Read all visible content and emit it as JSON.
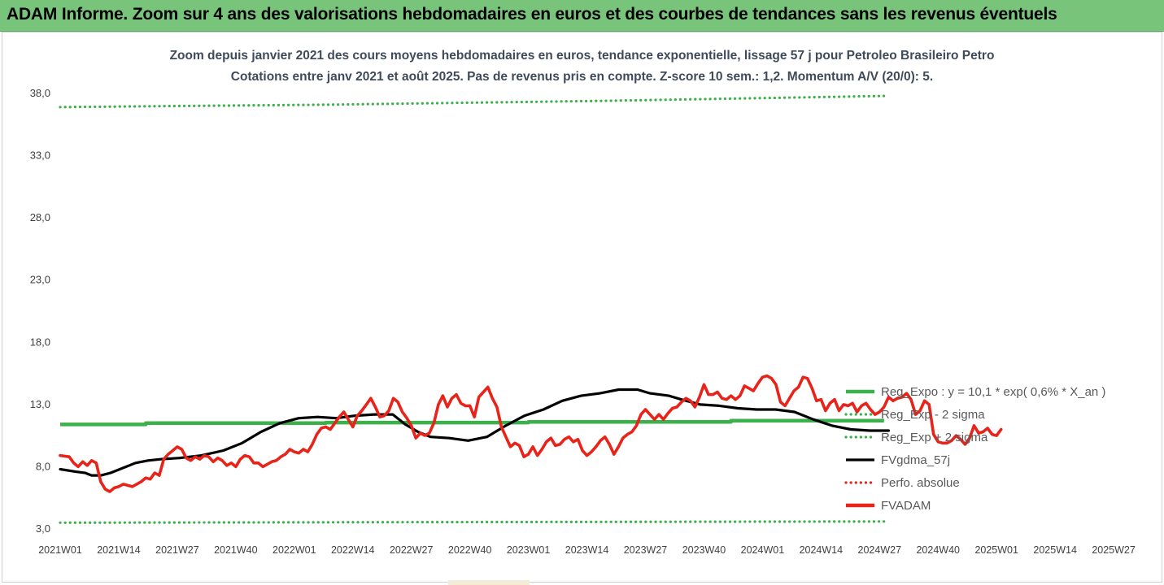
{
  "header": {
    "title": "ADAM Informe. Zoom sur 4 ans des valorisations hebdomadaires en euros et des courbes de tendances sans les revenus éventuels",
    "background": "#77c47a"
  },
  "chart_data": {
    "type": "line",
    "title": "Zoom depuis janvier 2021 des cours moyens hebdomadaires en euros, tendance exponentielle, lissage 57 j pour Petroleo Brasileiro Petro",
    "subtitle": "Cotations entre janv 2021 et août 2025.  Pas de revenus pris en compte. Z-score 10 sem.: 1,2. Momentum A/V (20/0): 5.",
    "ylim": [
      3,
      38
    ],
    "yticks": [
      "3,0",
      "8,0",
      "13,0",
      "18,0",
      "23,0",
      "28,0",
      "33,0",
      "38,0"
    ],
    "xticks": [
      "2021W01",
      "2021W14",
      "2021W27",
      "2021W40",
      "2022W01",
      "2022W14",
      "2022W27",
      "2022W40",
      "2023W01",
      "2023W14",
      "2023W27",
      "2023W40",
      "2024W01",
      "2024W14",
      "2024W27",
      "2024W40",
      "2025W01",
      "2025W14",
      "2025W27"
    ],
    "weeks": 184,
    "gridlines": false,
    "legend_position": "right",
    "series": [
      {
        "name": "Reg_Expo : y = 10,1 * exp( 0,6% *  X_an )",
        "color": "#3cb04a",
        "style": "solid",
        "points": [
          [
            0,
            11.4
          ],
          [
            19,
            11.4
          ],
          [
            19,
            11.5
          ],
          [
            59,
            11.5
          ],
          [
            59,
            11.55
          ],
          [
            104,
            11.55
          ],
          [
            104,
            11.6
          ],
          [
            149,
            11.6
          ],
          [
            149,
            11.7
          ],
          [
            183,
            11.7
          ]
        ]
      },
      {
        "name": "Reg_Exp - 2 sigma",
        "color": "#3cb04a",
        "style": "dotted",
        "points": [
          [
            0,
            3.5
          ],
          [
            183,
            3.6
          ]
        ]
      },
      {
        "name": "Reg_Exp + 2 sigma",
        "color": "#3cb04a",
        "style": "dotted",
        "points": [
          [
            0,
            36.9
          ],
          [
            60,
            37.1
          ],
          [
            120,
            37.4
          ],
          [
            183,
            37.8
          ]
        ]
      },
      {
        "name": "FVgdma_57j",
        "color": "#000000",
        "style": "solid",
        "points": [
          [
            0,
            7.8
          ],
          [
            5,
            7.6
          ],
          [
            8,
            7.5
          ],
          [
            10,
            7.3
          ],
          [
            13,
            7.3
          ],
          [
            16,
            7.5
          ],
          [
            19,
            7.8
          ],
          [
            24,
            8.3
          ],
          [
            28,
            8.5
          ],
          [
            32,
            8.6
          ],
          [
            38,
            8.7
          ],
          [
            45,
            8.9
          ],
          [
            52,
            9.3
          ],
          [
            58,
            9.9
          ],
          [
            64,
            10.8
          ],
          [
            70,
            11.5
          ],
          [
            76,
            11.9
          ],
          [
            82,
            12.0
          ],
          [
            88,
            11.9
          ],
          [
            94,
            12.1
          ],
          [
            100,
            12.2
          ],
          [
            106,
            12.2
          ],
          [
            110,
            11.4
          ],
          [
            114,
            10.8
          ],
          [
            118,
            10.4
          ],
          [
            124,
            10.3
          ],
          [
            130,
            10.1
          ],
          [
            136,
            10.4
          ],
          [
            142,
            11.3
          ],
          [
            148,
            12.1
          ],
          [
            154,
            12.6
          ],
          [
            160,
            13.3
          ],
          [
            166,
            13.7
          ],
          [
            172,
            13.9
          ],
          [
            178,
            14.2
          ],
          [
            184,
            14.2
          ],
          [
            188,
            13.9
          ],
          [
            194,
            13.7
          ],
          [
            198,
            13.4
          ],
          [
            204,
            13.0
          ],
          [
            210,
            12.9
          ],
          [
            216,
            12.7
          ],
          [
            222,
            12.6
          ],
          [
            228,
            12.6
          ],
          [
            234,
            12.4
          ],
          [
            240,
            11.8
          ],
          [
            246,
            11.3
          ],
          [
            252,
            11.0
          ],
          [
            258,
            10.9
          ],
          [
            264,
            10.9
          ]
        ]
      },
      {
        "name": "Perfo. absolue",
        "color": "#e8231a",
        "style": "dotted",
        "points": []
      },
      {
        "name": "FVADAM",
        "color": "#e8231a",
        "style": "solid",
        "points": [
          [
            0,
            8.9
          ],
          [
            2,
            8.8
          ],
          [
            3,
            8.3
          ],
          [
            4,
            8.0
          ],
          [
            5,
            8.4
          ],
          [
            6,
            8.1
          ],
          [
            7,
            8.5
          ],
          [
            8,
            8.3
          ],
          [
            9,
            6.8
          ],
          [
            10,
            6.2
          ],
          [
            11,
            6.0
          ],
          [
            12,
            6.3
          ],
          [
            13,
            6.4
          ],
          [
            14,
            6.6
          ],
          [
            15,
            6.5
          ],
          [
            16,
            6.4
          ],
          [
            17,
            6.6
          ],
          [
            18,
            6.8
          ],
          [
            19,
            7.1
          ],
          [
            20,
            7.0
          ],
          [
            21,
            7.5
          ],
          [
            22,
            7.3
          ],
          [
            23,
            8.6
          ],
          [
            24,
            9.0
          ],
          [
            25,
            9.3
          ],
          [
            26,
            9.6
          ],
          [
            27,
            9.4
          ],
          [
            28,
            8.7
          ],
          [
            29,
            8.5
          ],
          [
            30,
            8.8
          ],
          [
            31,
            8.6
          ],
          [
            32,
            8.9
          ],
          [
            33,
            8.8
          ],
          [
            34,
            8.4
          ],
          [
            35,
            8.7
          ],
          [
            36,
            8.5
          ],
          [
            37,
            8.1
          ],
          [
            38,
            8.3
          ],
          [
            39,
            8.0
          ],
          [
            40,
            8.6
          ],
          [
            41,
            8.9
          ],
          [
            42,
            8.8
          ],
          [
            43,
            8.3
          ],
          [
            44,
            8.3
          ],
          [
            45,
            8.0
          ],
          [
            46,
            8.2
          ],
          [
            47,
            8.4
          ],
          [
            48,
            8.5
          ],
          [
            49,
            8.8
          ],
          [
            50,
            9.0
          ],
          [
            51,
            9.4
          ],
          [
            52,
            9.2
          ],
          [
            53,
            9.1
          ],
          [
            54,
            9.4
          ],
          [
            55,
            9.2
          ],
          [
            56,
            9.8
          ],
          [
            57,
            10.6
          ],
          [
            58,
            11.1
          ],
          [
            59,
            11.2
          ],
          [
            60,
            11.0
          ],
          [
            61,
            11.5
          ],
          [
            62,
            12.0
          ],
          [
            63,
            12.4
          ],
          [
            64,
            11.8
          ],
          [
            65,
            11.2
          ],
          [
            66,
            12.1
          ],
          [
            67,
            12.5
          ],
          [
            68,
            13.0
          ],
          [
            69,
            13.5
          ],
          [
            70,
            12.8
          ],
          [
            71,
            12.0
          ],
          [
            72,
            12.1
          ],
          [
            73,
            12.5
          ],
          [
            74,
            13.5
          ],
          [
            75,
            13.2
          ],
          [
            76,
            12.4
          ],
          [
            77,
            11.9
          ],
          [
            78,
            11.3
          ],
          [
            79,
            10.3
          ],
          [
            80,
            10.7
          ],
          [
            81,
            10.5
          ],
          [
            82,
            10.7
          ],
          [
            83,
            11.5
          ],
          [
            84,
            13.0
          ],
          [
            85,
            13.7
          ],
          [
            86,
            12.8
          ],
          [
            87,
            13.5
          ],
          [
            88,
            13.8
          ],
          [
            89,
            13.1
          ],
          [
            90,
            12.9
          ],
          [
            91,
            12.9
          ],
          [
            92,
            12.0
          ],
          [
            93,
            13.6
          ],
          [
            94,
            14.0
          ],
          [
            95,
            14.4
          ],
          [
            96,
            13.5
          ],
          [
            97,
            12.8
          ],
          [
            98,
            11.2
          ],
          [
            99,
            10.4
          ],
          [
            100,
            9.6
          ],
          [
            101,
            9.9
          ],
          [
            102,
            9.7
          ],
          [
            103,
            8.8
          ],
          [
            104,
            9.0
          ],
          [
            105,
            9.6
          ],
          [
            106,
            8.9
          ],
          [
            107,
            9.4
          ],
          [
            108,
            10.0
          ],
          [
            109,
            10.3
          ],
          [
            110,
            9.7
          ],
          [
            111,
            9.8
          ],
          [
            112,
            10.2
          ],
          [
            113,
            10.4
          ],
          [
            114,
            10.0
          ],
          [
            115,
            10.2
          ],
          [
            116,
            9.3
          ],
          [
            117,
            8.9
          ],
          [
            118,
            9.2
          ],
          [
            119,
            9.6
          ],
          [
            120,
            10.1
          ],
          [
            121,
            10.4
          ],
          [
            122,
            9.8
          ],
          [
            123,
            9.0
          ],
          [
            124,
            9.6
          ],
          [
            125,
            10.3
          ],
          [
            126,
            10.6
          ],
          [
            127,
            10.8
          ],
          [
            128,
            11.3
          ],
          [
            129,
            12.2
          ],
          [
            130,
            12.6
          ],
          [
            131,
            12.2
          ],
          [
            132,
            11.8
          ],
          [
            133,
            12.2
          ],
          [
            134,
            11.8
          ],
          [
            135,
            12.3
          ],
          [
            136,
            12.7
          ],
          [
            137,
            12.8
          ],
          [
            138,
            13.2
          ],
          [
            139,
            13.5
          ],
          [
            140,
            13.3
          ],
          [
            141,
            12.8
          ],
          [
            142,
            13.6
          ],
          [
            143,
            14.6
          ],
          [
            144,
            13.8
          ],
          [
            145,
            13.8
          ],
          [
            146,
            14.0
          ],
          [
            147,
            13.5
          ],
          [
            148,
            13.4
          ],
          [
            149,
            13.7
          ],
          [
            150,
            13.4
          ],
          [
            151,
            13.7
          ],
          [
            152,
            14.5
          ],
          [
            153,
            14.3
          ],
          [
            154,
            14.1
          ],
          [
            155,
            14.7
          ],
          [
            156,
            15.2
          ],
          [
            157,
            15.3
          ],
          [
            158,
            15.1
          ],
          [
            159,
            14.6
          ],
          [
            160,
            13.2
          ],
          [
            161,
            12.9
          ],
          [
            162,
            13.5
          ],
          [
            163,
            14.1
          ],
          [
            164,
            14.4
          ],
          [
            165,
            15.2
          ],
          [
            166,
            15.1
          ],
          [
            167,
            14.3
          ],
          [
            168,
            13.3
          ],
          [
            169,
            13.4
          ],
          [
            170,
            12.5
          ],
          [
            171,
            13.1
          ],
          [
            172,
            13.4
          ],
          [
            173,
            12.5
          ],
          [
            174,
            13.0
          ],
          [
            175,
            12.9
          ],
          [
            176,
            13.1
          ],
          [
            177,
            12.4
          ],
          [
            178,
            12.9
          ],
          [
            179,
            13.1
          ],
          [
            180,
            12.6
          ],
          [
            181,
            12.2
          ],
          [
            182,
            12.4
          ],
          [
            183,
            12.8
          ],
          [
            184,
            13.6
          ],
          [
            185,
            13.3
          ],
          [
            186,
            13.5
          ],
          [
            187,
            13.6
          ],
          [
            188,
            13.9
          ],
          [
            189,
            13.4
          ],
          [
            190,
            12.2
          ],
          [
            191,
            12.5
          ],
          [
            192,
            13.3
          ],
          [
            193,
            13.0
          ],
          [
            194,
            10.6
          ],
          [
            195,
            10.0
          ],
          [
            196,
            9.9
          ],
          [
            197,
            9.9
          ],
          [
            198,
            10.1
          ],
          [
            199,
            10.5
          ],
          [
            200,
            10.2
          ],
          [
            201,
            9.8
          ],
          [
            202,
            10.3
          ],
          [
            203,
            11.3
          ],
          [
            204,
            10.7
          ],
          [
            205,
            10.8
          ],
          [
            206,
            11.1
          ],
          [
            207,
            10.6
          ],
          [
            208,
            10.5
          ],
          [
            209,
            11.0
          ]
        ]
      }
    ]
  }
}
